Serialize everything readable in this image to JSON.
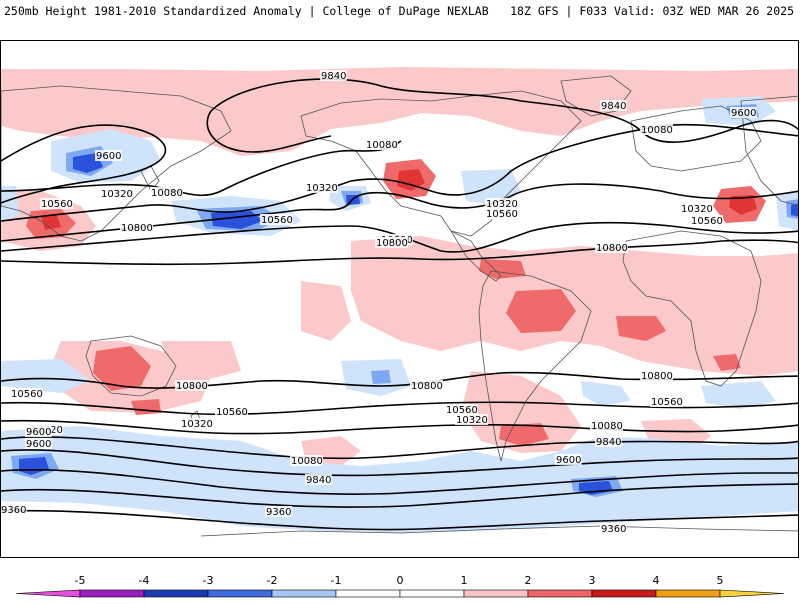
{
  "header": {
    "left_title": "250mb Height 1981-2010 Standardized Anomaly | College of DuPage NEXLAB",
    "right_title": "18Z GFS | F033 Valid: 03Z WED MAR 26 2025"
  },
  "map": {
    "contour_labels": [
      "9840",
      "9840",
      "9600",
      "9600",
      "10080",
      "10080",
      "10080",
      "10320",
      "10320",
      "10320",
      "10320",
      "10560",
      "10560",
      "10560",
      "10560",
      "10800",
      "10800",
      "10800",
      "10800",
      "10560",
      "10800",
      "10800",
      "10800",
      "10560",
      "10560",
      "10560",
      "10320",
      "10320",
      "10320",
      "10080",
      "10080",
      "9840",
      "9840",
      "9600",
      "9600",
      "9600",
      "9360",
      "9360",
      "9360"
    ],
    "colors": {
      "pos1": "#fbc9c9",
      "pos2": "#ef6b6b",
      "pos3": "#e03535",
      "neg1": "#cfe3fb",
      "neg2": "#7ea8f2",
      "neg3": "#2a52dd",
      "line": "#000000",
      "coast": "#555555"
    }
  },
  "colorbar": {
    "ticks": [
      "-5",
      "-4",
      "-3",
      "-2",
      "-1",
      "0",
      "1",
      "2",
      "3",
      "4",
      "5"
    ],
    "colors": [
      "#e64fe0",
      "#9b1fc0",
      "#1b3bb5",
      "#3f6ae0",
      "#a6c6f4",
      "#ffffff",
      "#ffffff",
      "#f9c4c4",
      "#ef6464",
      "#c81a1a",
      "#f1a016",
      "#f4d23a"
    ]
  }
}
